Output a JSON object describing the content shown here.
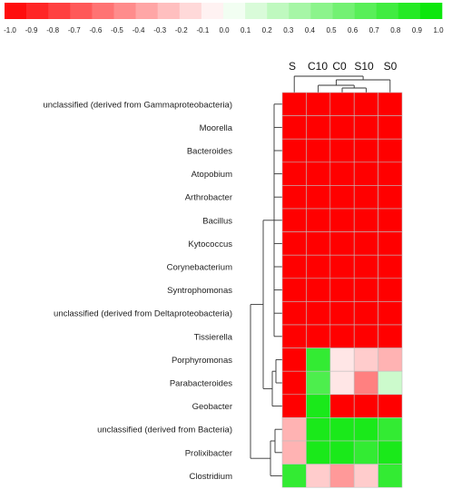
{
  "chart_data": {
    "type": "heatmap",
    "title": "",
    "color_scale": {
      "min": -1.0,
      "max": 1.0,
      "ticks": [
        "-1.0",
        "-0.9",
        "-0.8",
        "-0.7",
        "-0.6",
        "-0.5",
        "-0.4",
        "-0.3",
        "-0.2",
        "-0.1",
        "0.0",
        "0.1",
        "0.2",
        "0.3",
        "0.4",
        "0.5",
        "0.6",
        "0.7",
        "0.8",
        "0.9",
        "1.0"
      ],
      "negative_color": "#ff0000",
      "zero_color": "#ffffff",
      "positive_color": "#00e600"
    },
    "columns": [
      "S",
      "C10",
      "C0",
      "S10",
      "S0"
    ],
    "rows": [
      "unclassified (derived from Gammaproteobacteria)",
      "Moorella",
      "Bacteroides",
      "Atopobium",
      "Arthrobacter",
      "Bacillus",
      "Kytococcus",
      "Corynebacterium",
      "Syntrophomonas",
      "unclassified (derived from Deltaproteobacteria)",
      "Tissierella",
      "Porphyromonas",
      "Parabacteroides",
      "Geobacter",
      "unclassified (derived from Bacteria)",
      "Prolixibacter",
      "Clostridium"
    ],
    "values": [
      [
        -1.0,
        -1.0,
        -1.0,
        -1.0,
        -1.0
      ],
      [
        -1.0,
        -1.0,
        -1.0,
        -1.0,
        -1.0
      ],
      [
        -1.0,
        -1.0,
        -1.0,
        -1.0,
        -1.0
      ],
      [
        -1.0,
        -1.0,
        -1.0,
        -1.0,
        -1.0
      ],
      [
        -1.0,
        -1.0,
        -1.0,
        -1.0,
        -1.0
      ],
      [
        -1.0,
        -1.0,
        -1.0,
        -1.0,
        -1.0
      ],
      [
        -1.0,
        -1.0,
        -1.0,
        -1.0,
        -1.0
      ],
      [
        -1.0,
        -1.0,
        -1.0,
        -1.0,
        -1.0
      ],
      [
        -1.0,
        -1.0,
        -1.0,
        -1.0,
        -1.0
      ],
      [
        -1.0,
        -1.0,
        -1.0,
        -1.0,
        -1.0
      ],
      [
        -1.0,
        -1.0,
        -1.0,
        -1.0,
        -1.0
      ],
      [
        -1.0,
        0.8,
        -0.1,
        -0.2,
        -0.3
      ],
      [
        -1.0,
        0.7,
        -0.1,
        -0.5,
        0.2
      ],
      [
        -1.0,
        0.9,
        -1.0,
        -1.0,
        -1.0
      ],
      [
        -0.3,
        0.9,
        0.9,
        0.9,
        0.8
      ],
      [
        -0.3,
        0.9,
        0.9,
        0.8,
        0.9
      ],
      [
        0.8,
        -0.2,
        -0.4,
        -0.2,
        0.8
      ]
    ],
    "row_dendrogram": true,
    "column_dendrogram": true,
    "xlabel": "",
    "ylabel": ""
  }
}
